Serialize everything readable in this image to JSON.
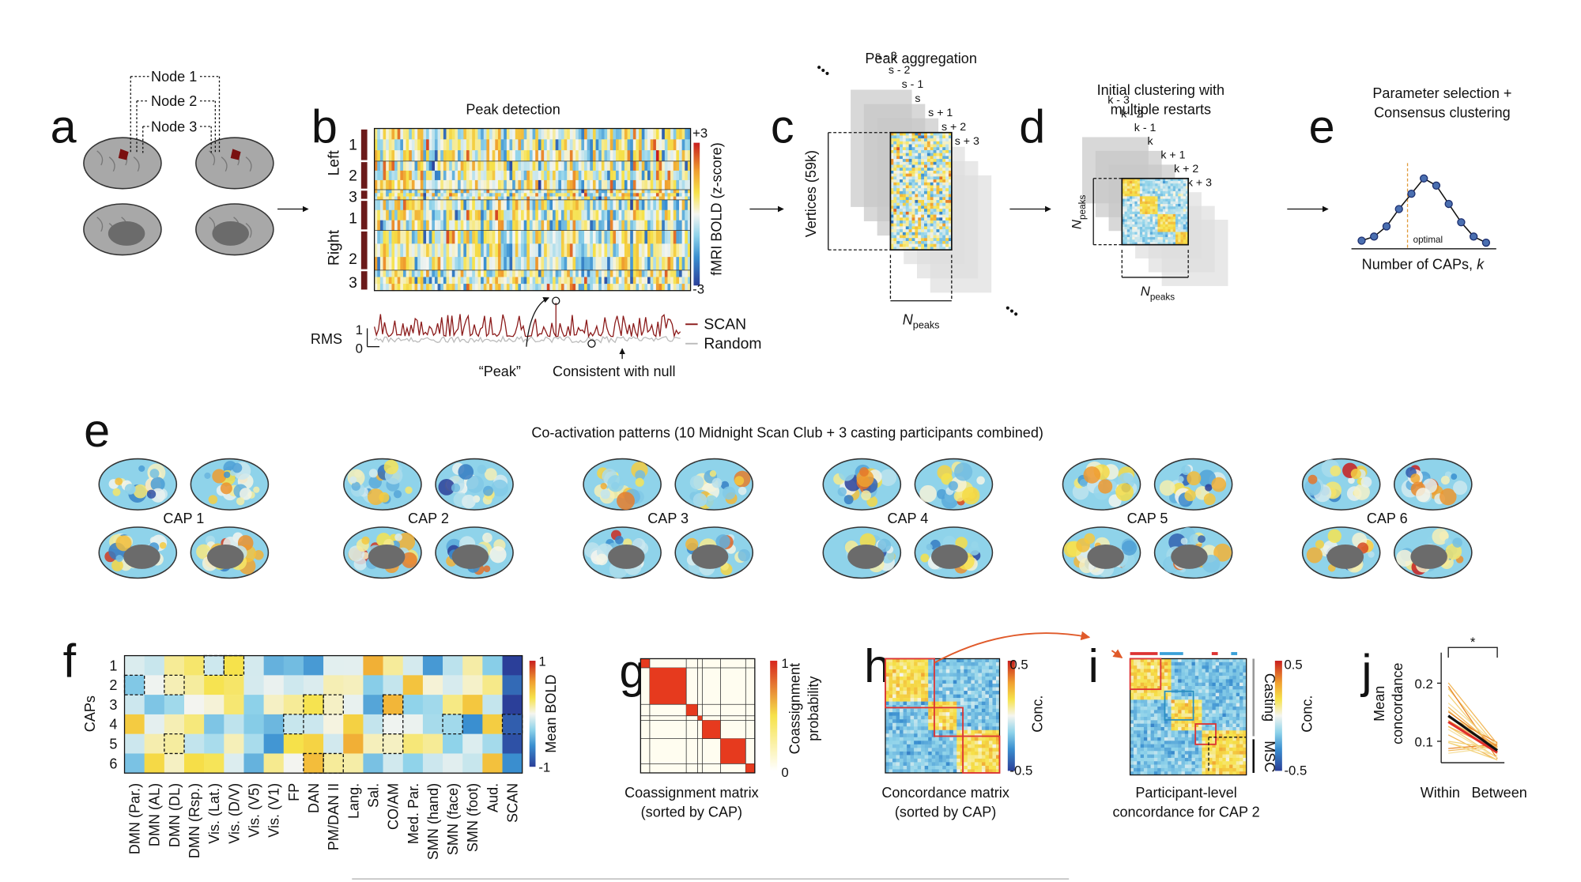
{
  "panels": {
    "a": {
      "letter": "a",
      "nodes": [
        "Node 1",
        "Node 2",
        "Node 3"
      ]
    },
    "b": {
      "letter": "b",
      "title": "Peak detection",
      "rows": [
        "1",
        "2",
        "3",
        "1",
        "2",
        "3"
      ],
      "hemispheres": [
        "Left",
        "Right"
      ],
      "colorbar": {
        "label": "fMRI BOLD (z-score)",
        "max": "+3",
        "min": "-3"
      },
      "rms": {
        "label": "RMS",
        "ticks": [
          "1",
          "0"
        ],
        "legend": [
          "SCAN",
          "Random"
        ],
        "annotations": [
          "“Peak”",
          "Consistent with null"
        ]
      }
    },
    "c": {
      "letter": "c",
      "title": "Peak aggregation",
      "y_label": "Vertices (59k)",
      "x_label": "N",
      "x_sub": "peaks",
      "stack": [
        "s - 3",
        "s - 2",
        "s - 1",
        "s",
        "s + 1",
        "s + 2",
        "s + 3"
      ]
    },
    "d": {
      "letter": "d",
      "title": [
        "Initial clustering with",
        "multiple restarts"
      ],
      "label": "N",
      "label_sub": "peaks",
      "stack": [
        "k - 3",
        "k - 2",
        "k - 1",
        "k",
        "k + 1",
        "k + 2",
        "k + 3"
      ]
    },
    "e": {
      "letter": "e",
      "title": [
        "Parameter selection +",
        "Consensus clustering"
      ],
      "x_label": "Number of CAPs, ",
      "x_var": "k",
      "annotation": "optimal"
    },
    "e2": {
      "letter": "e",
      "title": "Co-activation patterns (10 Midnight Scan Club + 3 casting participants combined)",
      "caps": [
        "CAP 1",
        "CAP 2",
        "CAP 3",
        "CAP 4",
        "CAP 5",
        "CAP 6"
      ]
    },
    "f": {
      "letter": "f",
      "y_label": "CAPs",
      "rows": [
        "1",
        "2",
        "3",
        "4",
        "5",
        "6"
      ],
      "networks": [
        {
          "name": "DMN (Par.)",
          "color": "#d7263d"
        },
        {
          "name": "DMN (AL)",
          "color": "#8e2c8e"
        },
        {
          "name": "DMN (DL)",
          "color": "#d9a21b"
        },
        {
          "name": "DMN (Rsp.)",
          "color": "#c8c8c8"
        },
        {
          "name": "Vis. (Lat.)",
          "color": "#1f2a7a"
        },
        {
          "name": "Vis. (D/V)",
          "color": "#2f6fc0"
        },
        {
          "name": "Vis. (V5)",
          "color": "#c9cf86"
        },
        {
          "name": "Vis. (V1)",
          "color": "#c9b07a"
        },
        {
          "name": "FP",
          "color": "#e3b81f"
        },
        {
          "name": "DAN",
          "color": "#3b9b3b"
        },
        {
          "name": "PM/DAN II",
          "color": "#d58ed0"
        },
        {
          "name": "Lang.",
          "color": "#2aa3a0"
        },
        {
          "name": "Sal.",
          "color": "#111111"
        },
        {
          "name": "CO/AM",
          "color": "#5a2a8a"
        },
        {
          "name": "Med. Par.",
          "color": "#1d2f6f"
        },
        {
          "name": "SMN (hand)",
          "color": "#8fd8ea"
        },
        {
          "name": "SMN (face)",
          "color": "#e8862a"
        },
        {
          "name": "SMN (foot)",
          "color": "#1f5e2a"
        },
        {
          "name": "Aud.",
          "color": "#7a3f9a"
        },
        {
          "name": "SCAN",
          "color": "#8b1a1a"
        }
      ],
      "colorbar": {
        "label": "Mean BOLD",
        "max": "1",
        "min": "-1"
      }
    },
    "g": {
      "letter": "g",
      "caption": [
        "Coassignment matrix",
        "(sorted by CAP)"
      ],
      "colorbar": {
        "label": [
          "Coassignment",
          "probability"
        ],
        "max": "1",
        "min": "0"
      }
    },
    "h": {
      "letter": "h",
      "caption": [
        "Concordance matrix",
        "(sorted by CAP)"
      ],
      "colorbar": {
        "label": "Conc.",
        "max": "0.5",
        "min": "-0.5"
      }
    },
    "i": {
      "letter": "i",
      "caption": [
        "Participant-level",
        "concordance for CAP 2"
      ],
      "groups": [
        "Casting",
        "MSC"
      ],
      "colorbar": {
        "label": "Conc.",
        "max": "0.5",
        "min": "-0.5"
      }
    },
    "j": {
      "letter": "j",
      "y_label": [
        "Mean",
        "concordance"
      ],
      "yticks": [
        "0.2",
        "0.1"
      ],
      "categories": [
        "Within",
        "Between"
      ],
      "significance": "*"
    }
  }
}
